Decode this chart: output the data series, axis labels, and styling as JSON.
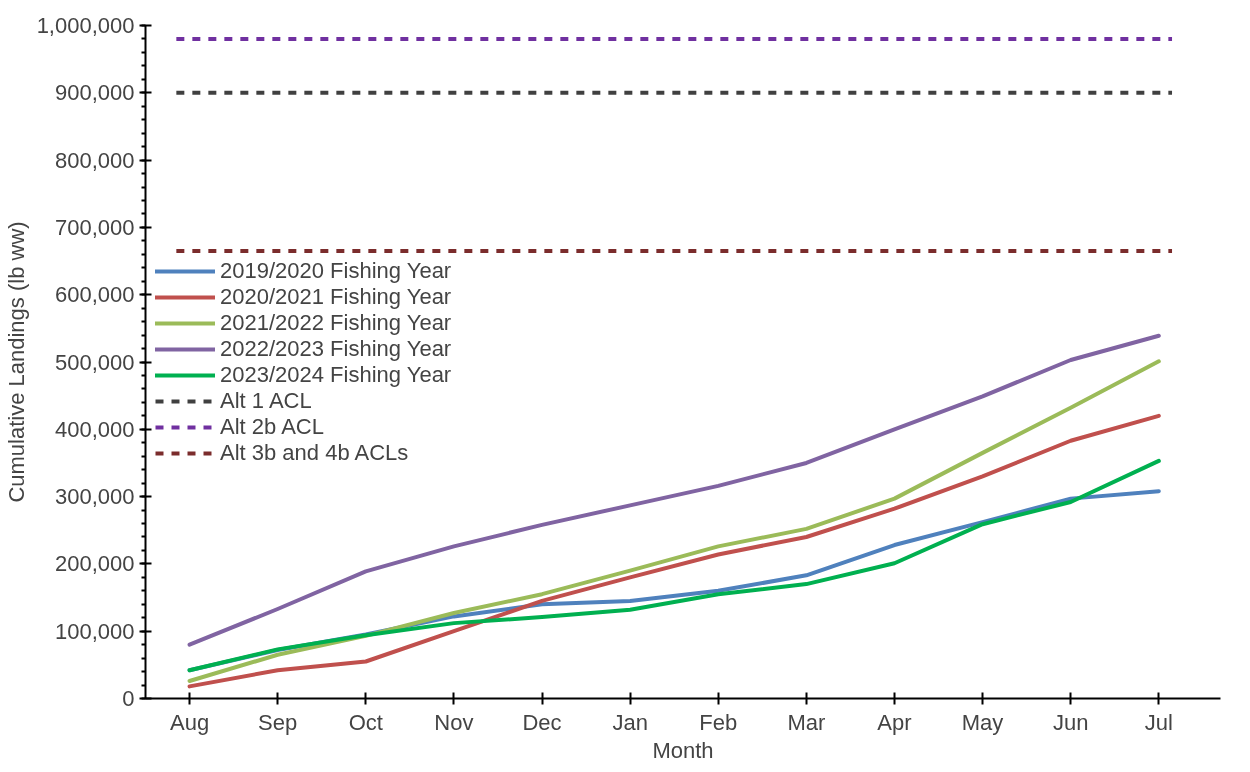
{
  "chart_data": {
    "type": "line",
    "xlabel": "Month",
    "ylabel": "Cumulative Landings (lb ww)",
    "categories": [
      "Aug",
      "Sep",
      "Oct",
      "Nov",
      "Dec",
      "Jan",
      "Feb",
      "Mar",
      "Apr",
      "May",
      "Jun",
      "Jul"
    ],
    "series": [
      {
        "name": "2019/2020 Fishing Year",
        "color": "#4f81bd",
        "values": [
          42000,
          72000,
          95000,
          122000,
          140000,
          145000,
          160000,
          183000,
          228000,
          262000,
          297000,
          308000
        ]
      },
      {
        "name": "2020/2021 Fishing Year",
        "color": "#c0504d",
        "values": [
          18000,
          42000,
          55000,
          100000,
          145000,
          180000,
          214000,
          240000,
          282000,
          330000,
          383000,
          420000
        ]
      },
      {
        "name": "2021/2022 Fishing Year",
        "color": "#9bbb59",
        "values": [
          26000,
          65000,
          93000,
          127000,
          155000,
          190000,
          226000,
          252000,
          297000,
          365000,
          432000,
          501000
        ]
      },
      {
        "name": "2022/2023 Fishing Year",
        "color": "#8064a2",
        "values": [
          80000,
          133000,
          189000,
          226000,
          258000,
          287000,
          316000,
          350000,
          400000,
          449000,
          503000,
          539000
        ]
      },
      {
        "name": "2023/2024 Fishing Year",
        "color": "#00b050",
        "values": [
          42000,
          73000,
          94000,
          112000,
          121000,
          132000,
          155000,
          170000,
          201000,
          259000,
          292000,
          353000
        ]
      }
    ],
    "ref_lines": [
      {
        "axis": "y",
        "value": 900000,
        "label": "Alt 1 ACL",
        "color": "#404040",
        "line_style": "dashed"
      },
      {
        "axis": "y",
        "value": 980000,
        "label": "Alt 2b ACL",
        "color": "#7030a0",
        "line_style": "dashed"
      },
      {
        "axis": "y",
        "value": 665000,
        "label": "Alt 3b and 4b ACLs",
        "color": "#7b2c2c",
        "line_style": "dashed"
      }
    ],
    "ylim": [
      0,
      1000000
    ],
    "yticks": [
      {
        "value": 0,
        "label": "0"
      },
      {
        "value": 100000,
        "label": "100,000"
      },
      {
        "value": 200000,
        "label": "200,000"
      },
      {
        "value": 300000,
        "label": "300,000"
      },
      {
        "value": 400000,
        "label": "400,000"
      },
      {
        "value": 500000,
        "label": "500,000"
      },
      {
        "value": 600000,
        "label": "600,000"
      },
      {
        "value": 700000,
        "label": "700,000"
      },
      {
        "value": 800000,
        "label": "800,000"
      },
      {
        "value": 900000,
        "label": "900,000"
      },
      {
        "value": 1000000,
        "label": "1,000,000"
      }
    ],
    "grid": false,
    "legend": "left",
    "marker": "none",
    "line_style": "solid"
  }
}
